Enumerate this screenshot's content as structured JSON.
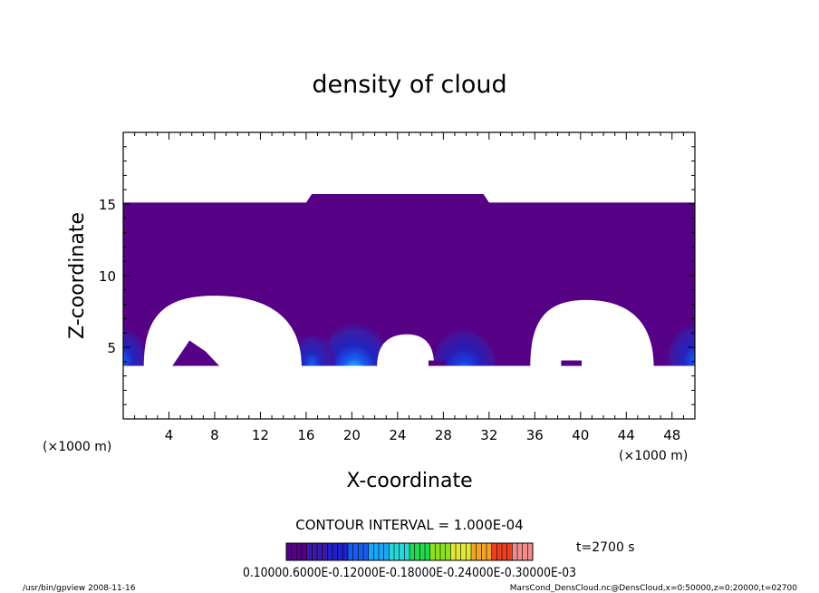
{
  "chart_data": {
    "type": "contour",
    "title": "density of cloud",
    "xlabel": "X-coordinate",
    "ylabel": "Z-coordinate",
    "x_unit_label": "(×1000 m)",
    "y_unit_label": "(×1000 m)",
    "xlim": [
      0,
      50
    ],
    "ylim": [
      0,
      20
    ],
    "xticks": [
      "4",
      "8",
      "12",
      "16",
      "20",
      "24",
      "28",
      "32",
      "36",
      "40",
      "44",
      "48"
    ],
    "yticks": [
      "5",
      "10",
      "15"
    ],
    "cloud_top": {
      "x": [
        0,
        16,
        16.5,
        31.5,
        32,
        50
      ],
      "z": [
        15.1,
        15.1,
        15.7,
        15.7,
        15.1,
        15.1
      ]
    },
    "cloud_base_z": 3.7,
    "clear_regions": [
      {
        "shape": "dome",
        "x_from": 1.8,
        "x_to": 15.6,
        "peak_x": 8,
        "peak_z": 8.6
      },
      {
        "shape": "dome",
        "x_from": 22.2,
        "x_to": 27.2,
        "peak_x": 24.8,
        "peak_z": 5.9
      },
      {
        "shape": "dome",
        "x_from": 35.6,
        "x_to": 46.4,
        "peak_x": 40.5,
        "peak_z": 8.3
      }
    ],
    "density_maxima": [
      {
        "x": 20.2,
        "z": 4.1,
        "relative": 1.0
      },
      {
        "x": 29.8,
        "z": 4.1,
        "relative": 0.75
      },
      {
        "x": 50,
        "z": 4.3,
        "relative": 0.6
      },
      {
        "x": 0,
        "z": 4.3,
        "relative": 0.45
      },
      {
        "x": 16.5,
        "z": 4.0,
        "relative": 0.4
      }
    ],
    "contour_interval": "CONTOUR INTERVAL = 1.000E-04",
    "colorbar": {
      "min": 0,
      "max": 0.001,
      "colors": [
        "#560086",
        "#3a1aa6",
        "#1f20c8",
        "#1a5cf0",
        "#1aa6f5",
        "#28d8d8",
        "#22d84c",
        "#8ee020",
        "#e2e838",
        "#f0a428",
        "#ec4020",
        "#f08c8c"
      ],
      "tick_labels_text": "0.10000.6000E-0.12000E-0.18000E-0.24000E-0.30000E-03"
    },
    "time_label": "t=2700 s"
  },
  "footer": {
    "left": "/usr/bin/gpview  2008-11-16",
    "right": "MarsCond_DensCloud.nc@DensCloud,x=0:50000,z=0:20000,t=02700"
  }
}
